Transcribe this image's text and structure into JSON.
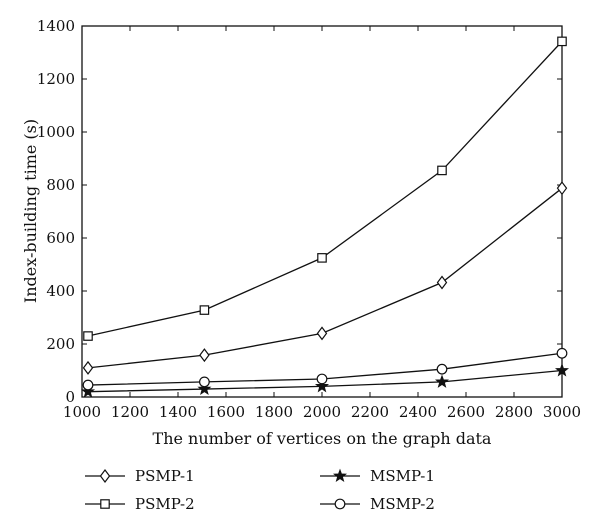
{
  "chart_data": {
    "type": "line",
    "xlabel": "The number of vertices on the graph data",
    "ylabel": "Index-building time (s)",
    "xlim": [
      1000,
      3000
    ],
    "ylim": [
      0,
      1400
    ],
    "xticks": [
      1000,
      1200,
      1400,
      1600,
      1800,
      2000,
      2200,
      2400,
      2600,
      2800,
      3000
    ],
    "yticks": [
      0,
      200,
      400,
      600,
      800,
      1000,
      1200,
      1400
    ],
    "grid": false,
    "legend_position": "bottom",
    "x": [
      1025,
      1510,
      2000,
      2500,
      3000
    ],
    "series": [
      {
        "name": "PSMP-1",
        "marker": "diamond",
        "values": [
          110,
          158,
          240,
          432,
          788
        ]
      },
      {
        "name": "PSMP-2",
        "marker": "square",
        "values": [
          230,
          328,
          525,
          855,
          1342
        ]
      },
      {
        "name": "MSMP-1",
        "marker": "star",
        "values": [
          20,
          30,
          40,
          57,
          100
        ]
      },
      {
        "name": "MSMP-2",
        "marker": "circle",
        "values": [
          45,
          57,
          68,
          105,
          165
        ]
      }
    ]
  }
}
